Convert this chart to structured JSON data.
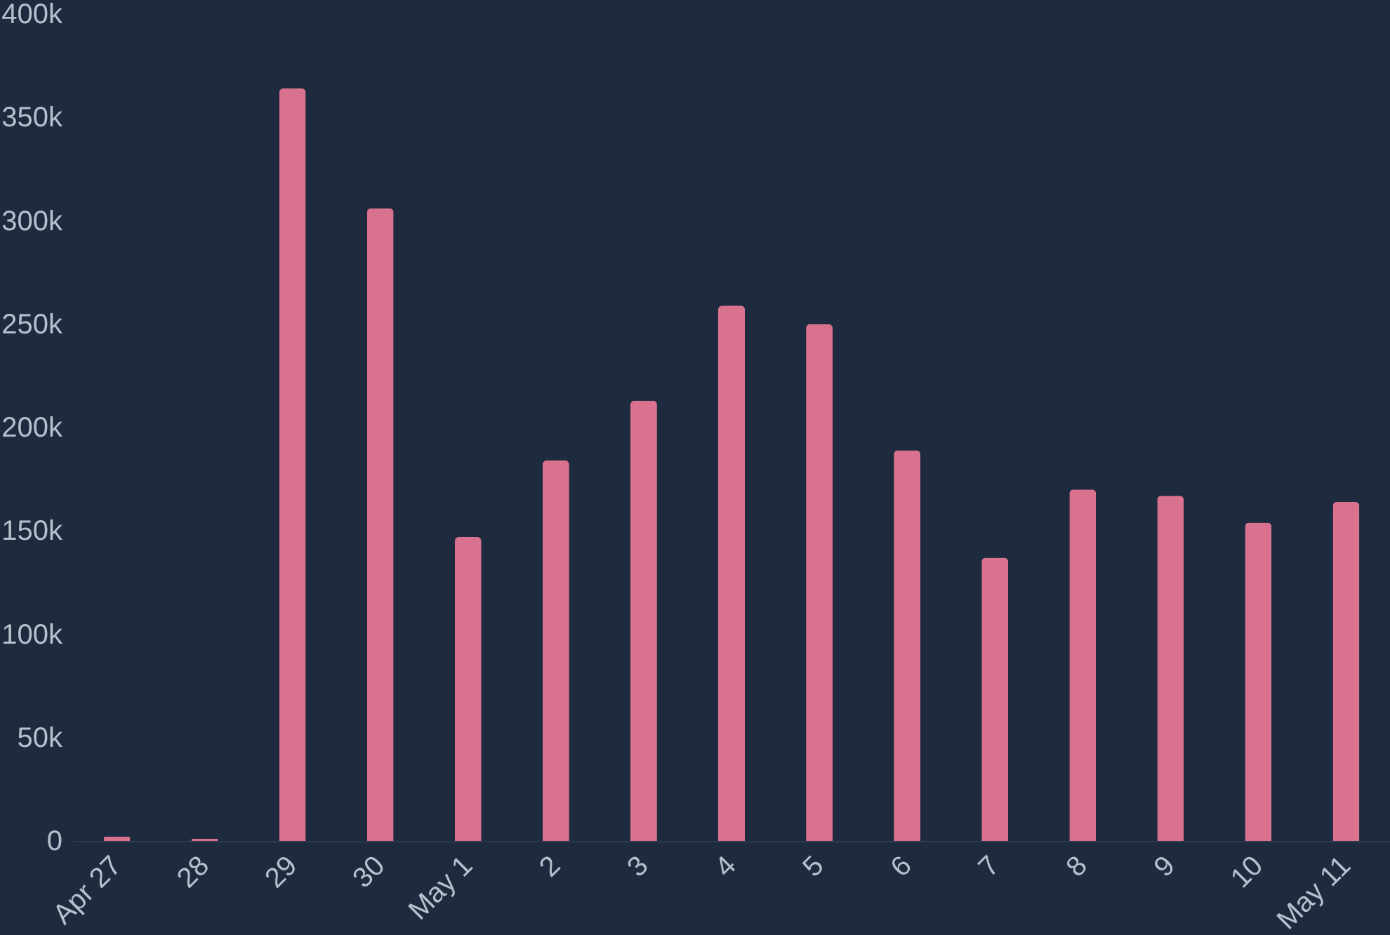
{
  "chart_data": {
    "type": "bar",
    "categories": [
      "Apr 27",
      "28",
      "29",
      "30",
      "May 1",
      "2",
      "3",
      "4",
      "5",
      "6",
      "7",
      "8",
      "9",
      "10",
      "May 11"
    ],
    "values": [
      2000,
      1000,
      364000,
      306000,
      147000,
      184000,
      213000,
      259000,
      250000,
      189000,
      137000,
      170000,
      167000,
      154000,
      164000
    ],
    "color": "#d9728f",
    "ylim": [
      0,
      400000
    ],
    "yticks": [
      {
        "value": 0,
        "label": "0"
      },
      {
        "value": 50000,
        "label": "50k"
      },
      {
        "value": 100000,
        "label": "100k"
      },
      {
        "value": 150000,
        "label": "150k"
      },
      {
        "value": 200000,
        "label": "200k"
      },
      {
        "value": 250000,
        "label": "250k"
      },
      {
        "value": 300000,
        "label": "300k"
      },
      {
        "value": 350000,
        "label": "350k"
      },
      {
        "value": 400000,
        "label": "400k"
      }
    ],
    "grid": false
  }
}
